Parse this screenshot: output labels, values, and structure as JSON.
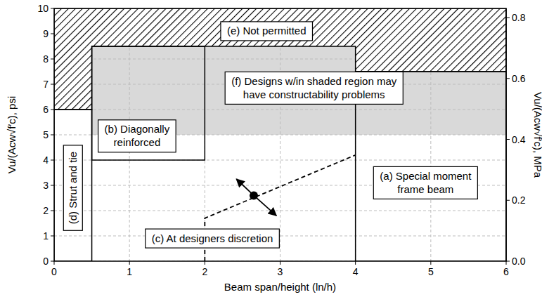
{
  "chart_data": {
    "type": "region",
    "xlabel": "Beam span/height (ln/h)",
    "ylabel": "Vu/(Acw√f′c), psi",
    "y2label": "Vu/(Acw√f′c), MPa",
    "xlim": [
      0,
      6
    ],
    "xticks": [
      0,
      1,
      2,
      3,
      4,
      5,
      6
    ],
    "ylim": [
      0,
      10
    ],
    "yticks": [
      0,
      1,
      2,
      3,
      4,
      5,
      6,
      7,
      8,
      9,
      10
    ],
    "y2lim": [
      0,
      0.83
    ],
    "y2ticks": [
      {
        "value": 0,
        "label": "0.0"
      },
      0.2,
      0.4,
      0.6,
      0.8
    ],
    "grid": true,
    "regions": [
      {
        "label": [
          "(e) Not permitted"
        ],
        "label_x": 2.82,
        "label_y": 9.1,
        "type": "hatch",
        "color": "#000000",
        "x": [
          0,
          0,
          6,
          6,
          4,
          4,
          0.5,
          0.5
        ],
        "y": [
          6,
          10,
          10,
          7.5,
          7.5,
          8.5,
          8.5,
          6
        ]
      },
      {
        "label": [
          "(f) Designs w/in shaded region may",
          "have constructability problems"
        ],
        "label_x": 3.45,
        "label_y": 6.85,
        "type": "fill",
        "color": "#d9d9d9",
        "x": [
          0.5,
          0.5,
          4,
          4,
          6,
          6
        ],
        "y": [
          5,
          8.5,
          8.5,
          7.5,
          7.5,
          5
        ]
      },
      {
        "label": [
          "(b) Diagonally",
          "reinforced"
        ],
        "label_x": 1.1,
        "label_y": 4.95,
        "type": "outline",
        "color": "#000000",
        "x": [
          0.5,
          0.5,
          2,
          2
        ],
        "y": [
          4,
          8.5,
          8.5,
          4
        ]
      },
      {
        "label": [
          "(d) Strut and tie"
        ],
        "label_x": 0.25,
        "label_y": 2.9,
        "type": "outline",
        "color": "#000000",
        "x": [
          0,
          0,
          0.5,
          0.5
        ],
        "y": [
          0,
          6,
          6,
          0
        ]
      },
      {
        "label": [
          "(c) At designers discretion"
        ],
        "label_x": 2.1,
        "label_y": 0.9
      },
      {
        "label": [
          "(a) Special moment",
          "frame beam"
        ],
        "label_x": 4.93,
        "label_y": 3.1,
        "type": "outline",
        "color": "#000000",
        "x": [
          4,
          4,
          6,
          6
        ],
        "y": [
          0,
          7.5,
          7.5,
          0
        ]
      }
    ],
    "series": [
      {
        "type": "line",
        "line_style": "dashed",
        "color": "#000000",
        "x": [
          2,
          2,
          4
        ],
        "y": [
          0,
          1.7,
          4.2
        ]
      },
      {
        "type": "arrow",
        "marker": "circle",
        "color": "#000000",
        "x": [
          2.42,
          2.65,
          2.95
        ],
        "y": [
          3.25,
          2.6,
          1.8
        ]
      }
    ]
  }
}
